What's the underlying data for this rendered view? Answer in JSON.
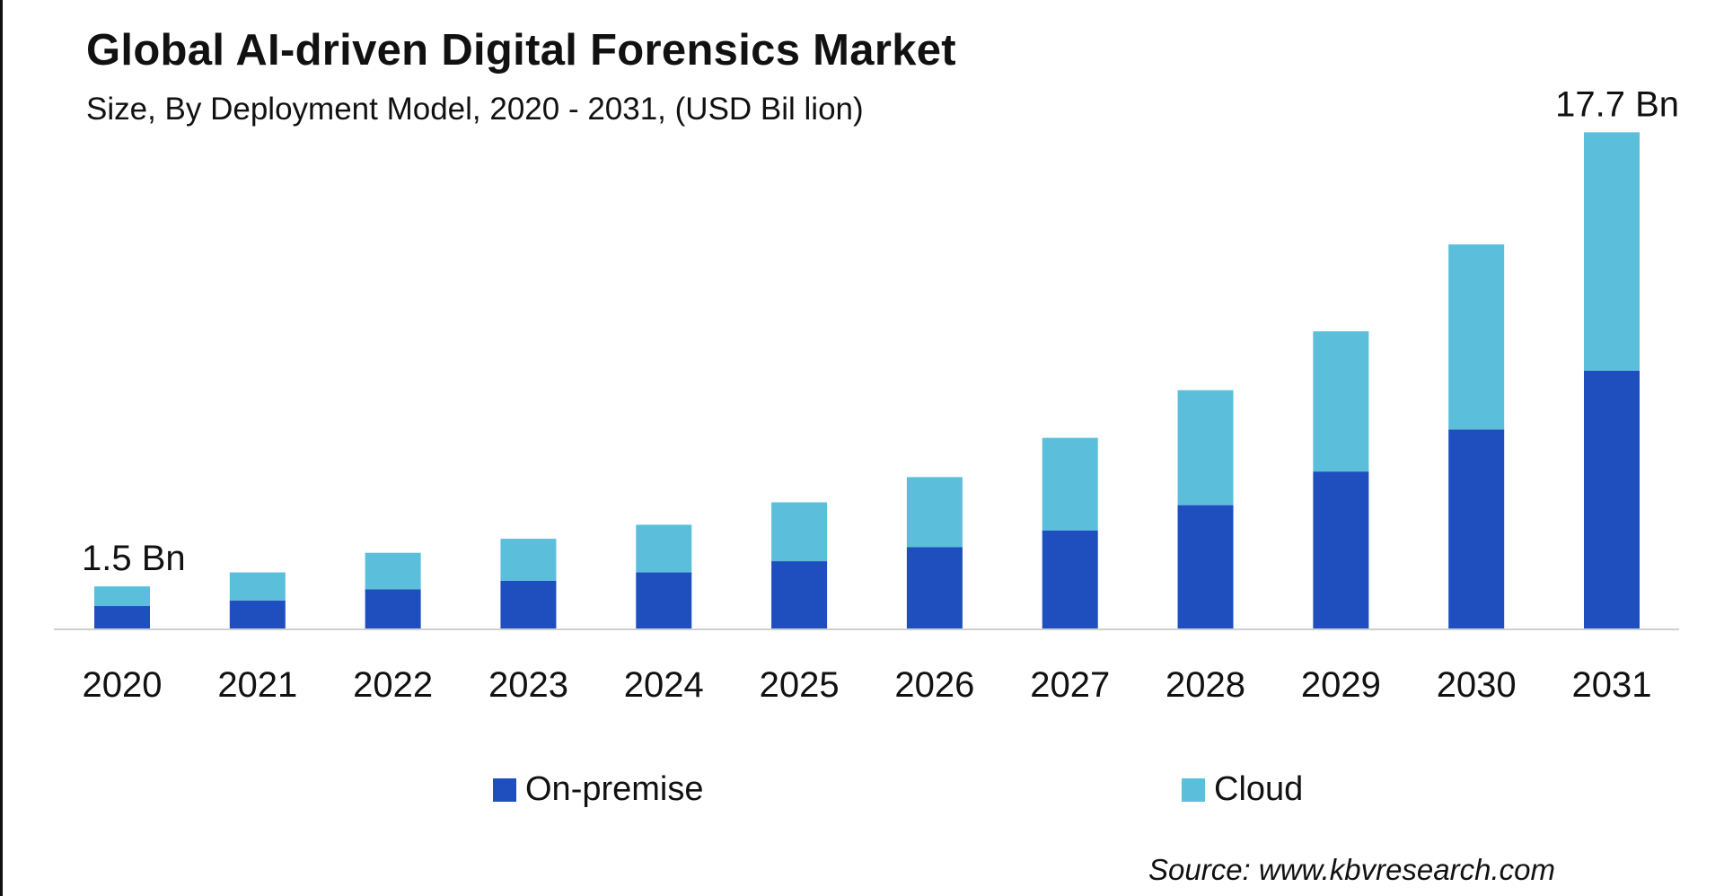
{
  "title": "Global AI-driven Digital Forensics Market",
  "subtitle": "Size, By Deployment Model, 2020 - 2031, (USD Bil lion)",
  "source": "Source: www.kbvresearch.com",
  "colors": {
    "on_premise": "#1f4fbf",
    "cloud": "#5bbfdc",
    "axis": "#cfcfcf",
    "text": "#111111"
  },
  "chart_data": {
    "type": "bar",
    "stacked": true,
    "categories": [
      "2020",
      "2021",
      "2022",
      "2023",
      "2024",
      "2025",
      "2026",
      "2027",
      "2028",
      "2029",
      "2030",
      "2031"
    ],
    "series": [
      {
        "name": "On-premise",
        "values": [
          0.8,
          1.0,
          1.4,
          1.7,
          2.0,
          2.4,
          2.9,
          3.5,
          4.4,
          5.6,
          7.1,
          9.2
        ]
      },
      {
        "name": "Cloud",
        "values": [
          0.7,
          1.0,
          1.3,
          1.5,
          1.7,
          2.1,
          2.5,
          3.3,
          4.1,
          5.0,
          6.6,
          8.5
        ]
      }
    ],
    "annotations": [
      {
        "category": "2020",
        "text": "1.5 Bn"
      },
      {
        "category": "2031",
        "text": "17.7 Bn"
      }
    ],
    "ylim": [
      0,
      18
    ],
    "grid": false,
    "legend_position": "bottom"
  }
}
